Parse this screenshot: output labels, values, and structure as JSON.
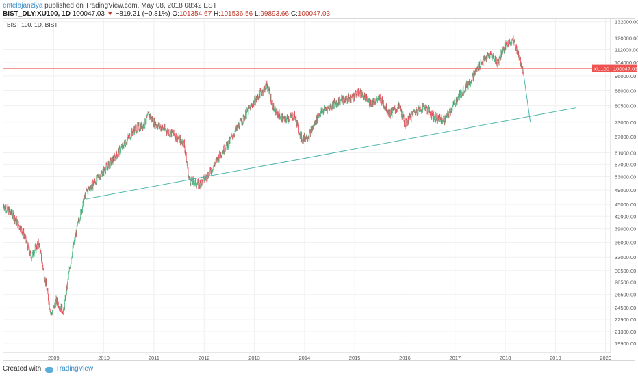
{
  "header": {
    "author": "entelajanziya",
    "publish_text": "published on TradingView.com, May 08, 2018 08:42 EST",
    "symbol": "BIST_DLY:XU100, 1D",
    "last": "100047.03",
    "change_arrow": "▼",
    "change": "−819.21 (−0.81%)",
    "o_label": "O:",
    "o_value": "101354.67",
    "h_label": "H:",
    "h_value": "101536.56",
    "l_label": "L:",
    "l_value": "99893.66",
    "c_label": "C:",
    "c_value": "100047.03"
  },
  "footer": {
    "created_with": "Created with",
    "brand": "TradingView"
  },
  "colors": {
    "up": "#53b987",
    "down": "#eb4d5c",
    "trendline": "#4db6ac",
    "price_line": "#ef5350",
    "price_label_bg": "#ef5350",
    "grid": "#f0f0f0"
  },
  "chart_data": {
    "type": "line",
    "title": "BIST 100, 1D, BIST",
    "symbol_label": "XU100",
    "last_price_label": "100047.03",
    "last_price": 100047.03,
    "y_scale": "log",
    "grid": true,
    "y_ticks": [
      "132000.00",
      "120000.00",
      "112000.00",
      "104000.00",
      "96000.00",
      "88000.00",
      "80500.00",
      "73000.00",
      "67000.00",
      "61000.00",
      "57000.00",
      "53000.00",
      "49000.00",
      "45000.00",
      "42000.00",
      "39000.00",
      "36000.00",
      "33000.00",
      "30500.00",
      "28500.00",
      "26500.00",
      "24500.00",
      "22900.00",
      "21300.00",
      "19900.00"
    ],
    "x_ticks": [
      "2009",
      "2010",
      "2011",
      "2012",
      "2013",
      "2014",
      "2015",
      "2016",
      "2017",
      "2018",
      "2019",
      "2020"
    ],
    "series": [
      {
        "values_note_free": true,
        "x": [
          2008.0,
          2008.2,
          2008.4,
          2008.55,
          2008.7,
          2008.85,
          2008.95,
          2009.05,
          2009.2,
          2009.35,
          2009.5,
          2009.65,
          2009.8,
          2010.0,
          2010.2,
          2010.4,
          2010.6,
          2010.8,
          2010.9,
          2011.0,
          2011.2,
          2011.4,
          2011.6,
          2011.7,
          2011.9,
          2012.1,
          2012.3,
          2012.5,
          2012.7,
          2012.9,
          2013.1,
          2013.25,
          2013.4,
          2013.6,
          2013.8,
          2013.95,
          2014.1,
          2014.3,
          2014.5,
          2014.7,
          2014.9,
          2015.1,
          2015.3,
          2015.5,
          2015.7,
          2015.9,
          2016.0,
          2016.2,
          2016.4,
          2016.6,
          2016.8,
          2016.95,
          2017.1,
          2017.3,
          2017.5,
          2017.7,
          2017.85,
          2017.95,
          2018.05,
          2018.15,
          2018.25,
          2018.35
        ],
        "y": [
          45000,
          42000,
          38000,
          33000,
          36000,
          28000,
          23500,
          25500,
          24000,
          33000,
          41000,
          48500,
          51000,
          55000,
          59000,
          64000,
          70000,
          72000,
          76500,
          73000,
          70000,
          68000,
          64500,
          52000,
          50500,
          54000,
          60000,
          65000,
          72000,
          79000,
          86000,
          91000,
          78000,
          74000,
          76000,
          66000,
          68000,
          77000,
          80000,
          83000,
          84000,
          87000,
          82000,
          84000,
          77000,
          80000,
          72000,
          78000,
          80000,
          75000,
          74000,
          80000,
          86000,
          93000,
          103000,
          109000,
          104000,
          112000,
          116000,
          119000,
          110000,
          100047
        ]
      }
    ],
    "trendline": {
      "x": [
        2009.65,
        2019.4
      ],
      "y": [
        46500,
        79500
      ]
    },
    "projection": {
      "x": [
        2018.35,
        2018.5
      ],
      "y": [
        100047,
        73000
      ]
    }
  }
}
